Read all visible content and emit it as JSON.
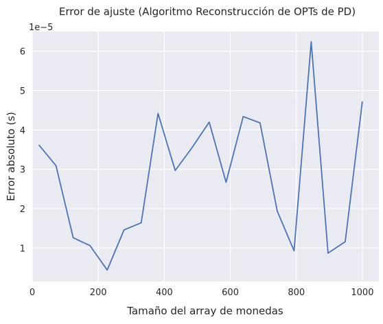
{
  "chart_data": {
    "type": "line",
    "title": "Error de ajuste (Algoritmo Reconstrucción de OPTs de PD)",
    "xlabel": "Tamaño del array de monedas",
    "ylabel": "Error absoluto (s)",
    "y_scale_label": "1e−5",
    "xlim": [
      0,
      1050
    ],
    "ylim": [
      0.15,
      6.5
    ],
    "xticks": [
      0,
      200,
      400,
      600,
      800,
      1000
    ],
    "xtick_labels": [
      "0",
      "200",
      "400",
      "600",
      "800",
      "1000"
    ],
    "yticks": [
      1,
      2,
      3,
      4,
      5,
      6
    ],
    "ytick_labels": [
      "1",
      "2",
      "3",
      "4",
      "5",
      "6"
    ],
    "grid": true,
    "background": "#eaeaf2",
    "series": [
      {
        "color": "#4c72b0",
        "x": [
          20,
          72,
          124,
          175,
          227,
          278,
          330,
          381,
          433,
          484,
          536,
          587,
          639,
          690,
          742,
          793,
          845,
          896,
          948,
          1000
        ],
        "y": [
          3.62,
          3.09,
          1.26,
          1.06,
          0.44,
          1.46,
          1.64,
          4.42,
          2.97,
          3.55,
          4.2,
          2.67,
          4.34,
          4.18,
          1.94,
          0.93,
          6.24,
          0.87,
          1.16,
          4.73
        ]
      }
    ]
  }
}
